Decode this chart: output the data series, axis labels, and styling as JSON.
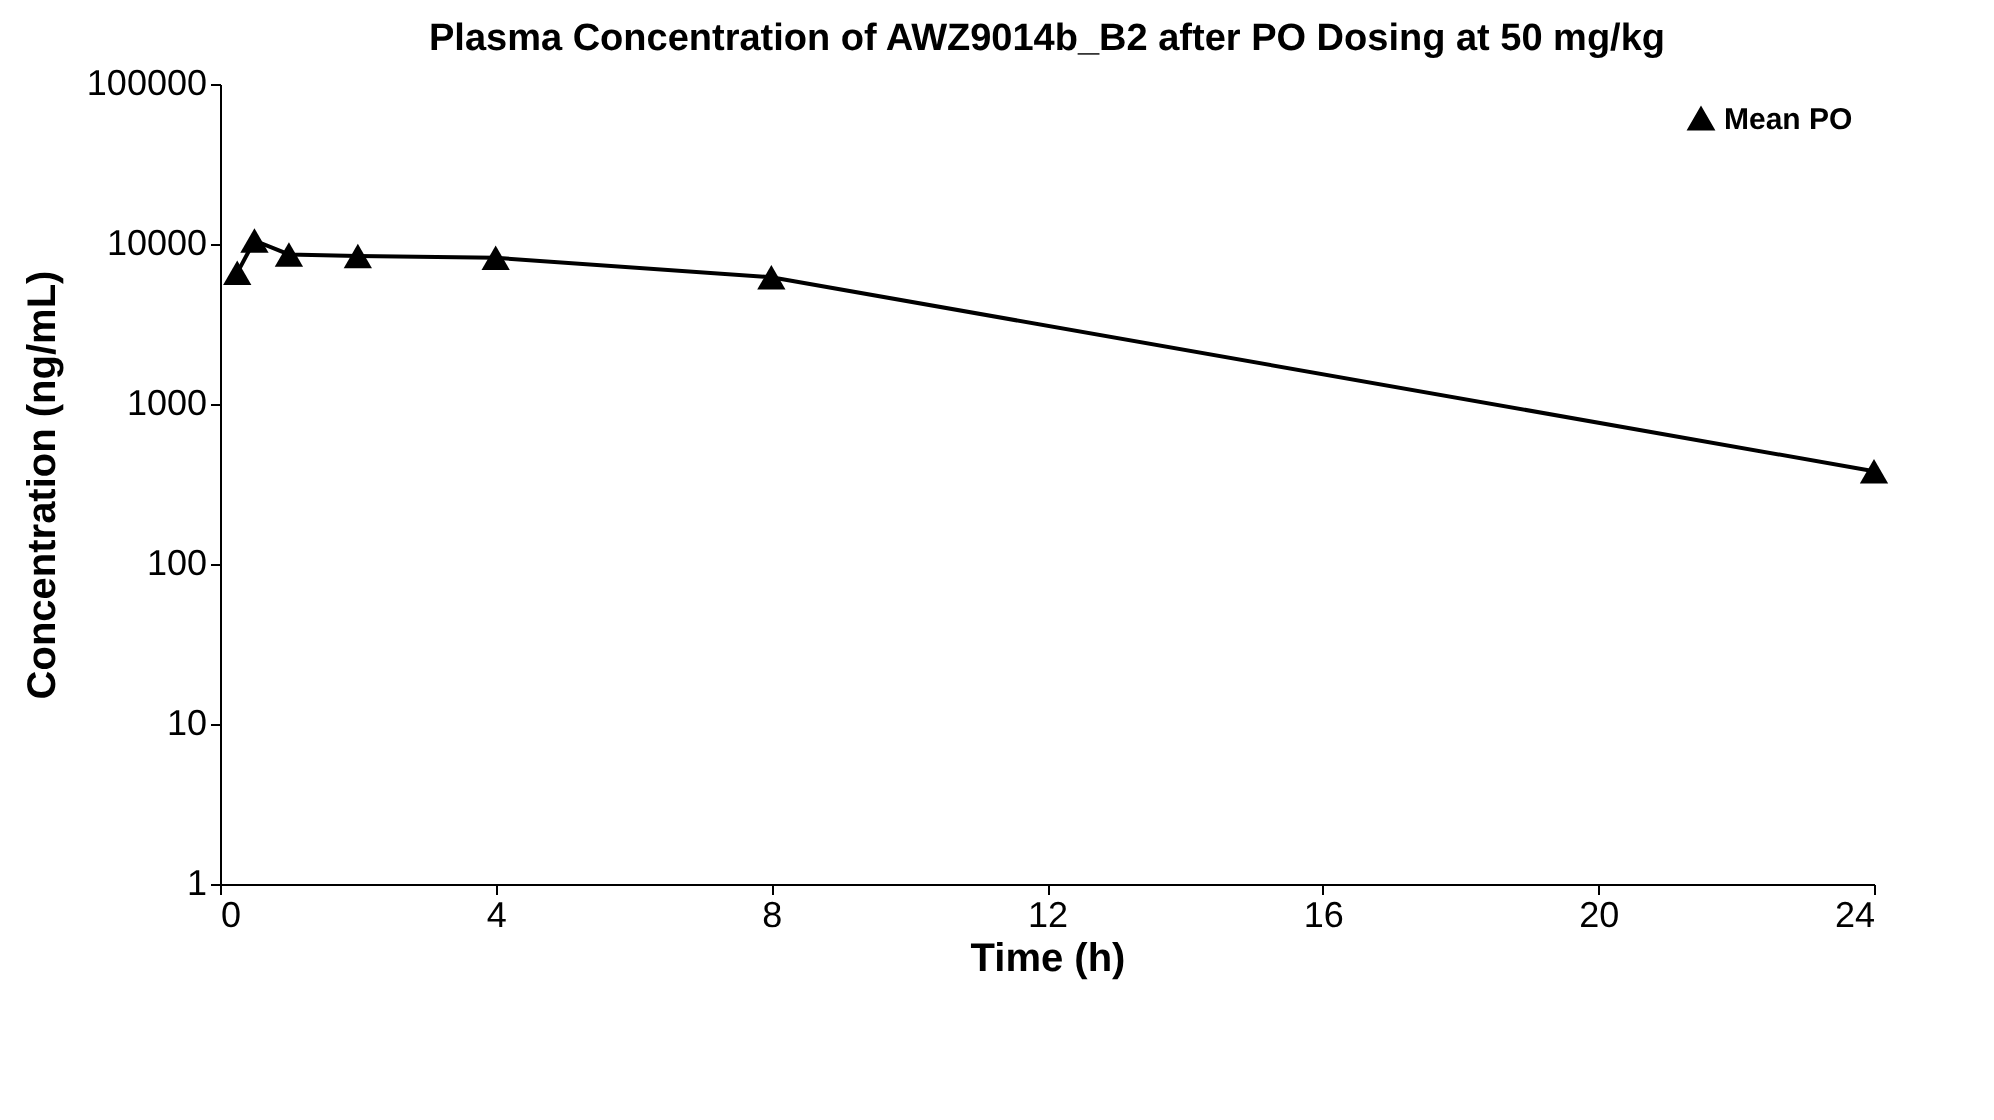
{
  "chart_data": {
    "type": "line",
    "title": "Plasma Concentration of AWZ9014b_B2 after PO Dosing at 50 mg/kg",
    "xlabel": "Time (h)",
    "ylabel": "Concentration (ng/mL)",
    "x": [
      0.25,
      0.5,
      1,
      2,
      4,
      8,
      24
    ],
    "series": [
      {
        "name": "Mean PO",
        "color": "#000000",
        "values": [
          6600,
          10500,
          8600,
          8400,
          8200,
          6200,
          380
        ]
      }
    ],
    "xlim": [
      0,
      24
    ],
    "xticks": [
      0,
      4,
      8,
      12,
      16,
      20,
      24
    ],
    "ylim": [
      1,
      100000
    ],
    "yticks": [
      1,
      10,
      100,
      1000,
      10000,
      100000
    ],
    "log": "y",
    "grid": false,
    "legend": "top right",
    "marker": "triangle",
    "line_style": "solid"
  }
}
